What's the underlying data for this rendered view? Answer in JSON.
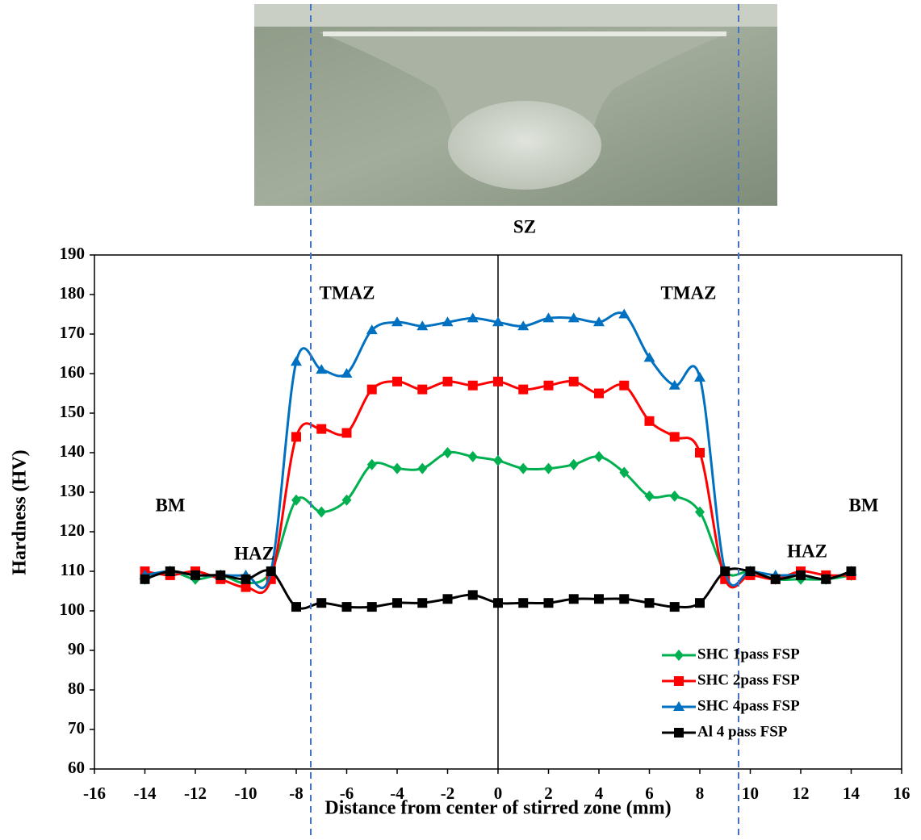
{
  "chart_data": {
    "type": "line",
    "x": [
      -14,
      -13,
      -12,
      -11,
      -10,
      -9,
      -8,
      -7,
      -6,
      -5,
      -4,
      -3,
      -2,
      -1,
      0,
      1,
      2,
      3,
      4,
      5,
      6,
      7,
      8,
      9,
      10,
      11,
      12,
      13,
      14
    ],
    "series": [
      {
        "name": "SHC 1pass FSP",
        "color": "#00b050",
        "marker": "diamond",
        "values": [
          108,
          110,
          108,
          109,
          107,
          110,
          128,
          125,
          128,
          137,
          136,
          136,
          140,
          139,
          138,
          136,
          136,
          137,
          139,
          135,
          129,
          129,
          125,
          110,
          110,
          108,
          108,
          108,
          109
        ]
      },
      {
        "name": "SHC 2pass FSP",
        "color": "#ff0000",
        "marker": "square",
        "values": [
          110,
          109,
          110,
          108,
          106,
          108,
          144,
          146,
          145,
          156,
          158,
          156,
          158,
          157,
          158,
          156,
          157,
          158,
          155,
          157,
          148,
          144,
          140,
          108,
          109,
          108,
          110,
          109,
          109
        ]
      },
      {
        "name": "SHC 4pass FSP",
        "color": "#0070c0",
        "marker": "triangle",
        "values": [
          109,
          110,
          109,
          109,
          109,
          110,
          163,
          161,
          160,
          171,
          173,
          172,
          173,
          174,
          173,
          172,
          174,
          174,
          173,
          175,
          164,
          157,
          159,
          110,
          110,
          109,
          109,
          108,
          110
        ]
      },
      {
        "name": "Al 4 pass FSP",
        "color": "#000000",
        "marker": "square",
        "values": [
          108,
          110,
          109,
          109,
          108,
          110,
          101,
          102,
          101,
          101,
          102,
          102,
          103,
          104,
          102,
          102,
          102,
          103,
          103,
          103,
          102,
          101,
          102,
          110,
          110,
          108,
          109,
          108,
          110
        ]
      }
    ],
    "xlabel": "Distance from center of stirred zone (mm)",
    "ylabel": "Hardness (HV)",
    "xlim": [
      -16,
      16
    ],
    "xticks": [
      -16,
      -14,
      -12,
      -10,
      -8,
      -6,
      -4,
      -2,
      0,
      2,
      4,
      6,
      8,
      10,
      12,
      14,
      16
    ],
    "ylim": [
      60,
      190
    ],
    "yticks": [
      60,
      70,
      80,
      90,
      100,
      110,
      120,
      130,
      140,
      150,
      160,
      170,
      180,
      190
    ],
    "legend": "lower right",
    "annotations": [
      "SZ",
      "TMAZ",
      "TMAZ",
      "BM",
      "BM",
      "HAZ",
      "HAZ"
    ]
  }
}
